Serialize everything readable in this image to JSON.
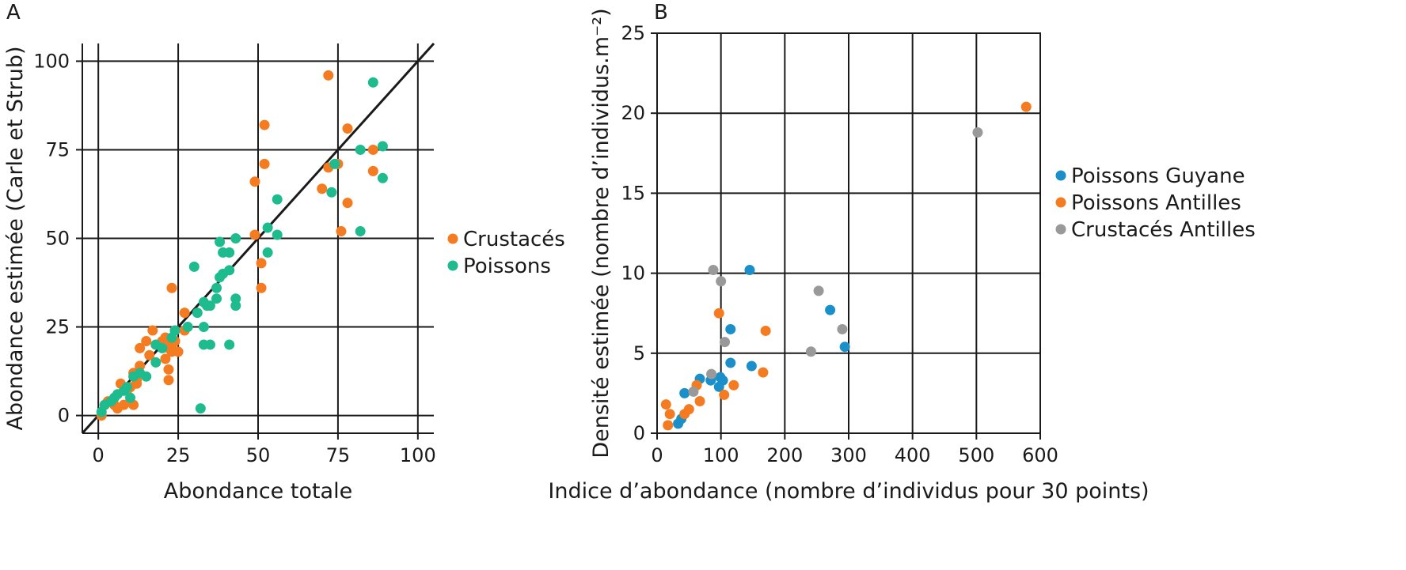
{
  "chart_data": [
    {
      "panel": "A",
      "type": "scatter",
      "xlabel": "Abondance totale",
      "ylabel": "Abondance estimée (Carle et Strub)",
      "xlim": [
        -5,
        105
      ],
      "ylim": [
        -5,
        105
      ],
      "xticks": [
        0,
        25,
        50,
        75,
        100
      ],
      "yticks": [
        0,
        25,
        50,
        75,
        100
      ],
      "grid": true,
      "reference_line": "y = x",
      "legend_position": "right",
      "series": [
        {
          "name": "Crustacés",
          "color": "#f47b20",
          "points": [
            [
              1,
              0
            ],
            [
              2,
              3
            ],
            [
              3,
              4
            ],
            [
              5,
              3
            ],
            [
              6,
              2
            ],
            [
              7,
              9
            ],
            [
              8,
              3
            ],
            [
              9,
              7
            ],
            [
              10,
              8
            ],
            [
              11,
              12
            ],
            [
              11,
              3
            ],
            [
              12,
              10
            ],
            [
              12,
              9
            ],
            [
              13,
              14
            ],
            [
              13,
              19
            ],
            [
              15,
              21
            ],
            [
              16,
              17
            ],
            [
              17,
              24
            ],
            [
              18,
              20
            ],
            [
              20,
              21
            ],
            [
              21,
              16
            ],
            [
              21,
              22
            ],
            [
              22,
              10
            ],
            [
              22,
              13
            ],
            [
              22,
              19
            ],
            [
              23,
              20
            ],
            [
              23,
              36
            ],
            [
              23,
              18
            ],
            [
              24,
              24
            ],
            [
              24,
              21
            ],
            [
              25,
              18
            ],
            [
              27,
              29
            ],
            [
              27,
              24
            ],
            [
              49,
              66
            ],
            [
              49,
              51
            ],
            [
              51,
              43
            ],
            [
              51,
              36
            ],
            [
              52,
              82
            ],
            [
              52,
              71
            ],
            [
              70,
              64
            ],
            [
              72,
              96
            ],
            [
              72,
              70
            ],
            [
              75,
              71
            ],
            [
              76,
              52
            ],
            [
              78,
              81
            ],
            [
              78,
              60
            ],
            [
              86,
              75
            ],
            [
              86,
              69
            ]
          ]
        },
        {
          "name": "Poissons",
          "color": "#1dbb8e",
          "points": [
            [
              1,
              1
            ],
            [
              2,
              3
            ],
            [
              4,
              4
            ],
            [
              5,
              5
            ],
            [
              6,
              6
            ],
            [
              8,
              7
            ],
            [
              9,
              8
            ],
            [
              10,
              5
            ],
            [
              11,
              11
            ],
            [
              13,
              12
            ],
            [
              15,
              11
            ],
            [
              18,
              15
            ],
            [
              18,
              20
            ],
            [
              20,
              19
            ],
            [
              23,
              22
            ],
            [
              24,
              24
            ],
            [
              28,
              25
            ],
            [
              30,
              42
            ],
            [
              31,
              29
            ],
            [
              32,
              2
            ],
            [
              33,
              32
            ],
            [
              33,
              20
            ],
            [
              33,
              25
            ],
            [
              34,
              31
            ],
            [
              35,
              20
            ],
            [
              35,
              31
            ],
            [
              37,
              36
            ],
            [
              37,
              33
            ],
            [
              38,
              39
            ],
            [
              38,
              49
            ],
            [
              39,
              46
            ],
            [
              39,
              40
            ],
            [
              41,
              46
            ],
            [
              41,
              41
            ],
            [
              41,
              20
            ],
            [
              43,
              50
            ],
            [
              43,
              33
            ],
            [
              43,
              31
            ],
            [
              53,
              53
            ],
            [
              53,
              46
            ],
            [
              56,
              61
            ],
            [
              56,
              51
            ],
            [
              73,
              63
            ],
            [
              74,
              71
            ],
            [
              82,
              75
            ],
            [
              82,
              52
            ],
            [
              86,
              94
            ],
            [
              89,
              67
            ],
            [
              89,
              76
            ]
          ]
        }
      ]
    },
    {
      "panel": "B",
      "type": "scatter",
      "xlabel": "Indice d’abondance (nombre d’individus pour 30 points)",
      "ylabel": "Densité estimée (nombre d’individus.m⁻²)",
      "xlim": [
        0,
        600
      ],
      "ylim": [
        0,
        25
      ],
      "xticks": [
        0,
        100,
        200,
        300,
        400,
        500,
        600
      ],
      "yticks": [
        0,
        5,
        10,
        15,
        20,
        25
      ],
      "grid": true,
      "legend_position": "right",
      "series": [
        {
          "name": "Poissons Guyane",
          "color": "#1a8fc9",
          "points": [
            [
              33,
              0.6
            ],
            [
              38,
              0.9
            ],
            [
              43,
              2.5
            ],
            [
              67,
              3.4
            ],
            [
              84,
              3.3
            ],
            [
              97,
              2.9
            ],
            [
              99,
              3.5
            ],
            [
              103,
              3.3
            ],
            [
              115,
              4.4
            ],
            [
              115,
              6.5
            ],
            [
              145,
              10.2
            ],
            [
              148,
              4.2
            ],
            [
              271,
              7.7
            ],
            [
              294,
              5.4
            ]
          ]
        },
        {
          "name": "Poissons Antilles",
          "color": "#f47b20",
          "points": [
            [
              14,
              1.8
            ],
            [
              17,
              0.5
            ],
            [
              20,
              1.2
            ],
            [
              43,
              1.2
            ],
            [
              50,
              1.5
            ],
            [
              62,
              3.0
            ],
            [
              67,
              2.0
            ],
            [
              97,
              7.5
            ],
            [
              105,
              2.4
            ],
            [
              120,
              3.0
            ],
            [
              166,
              3.8
            ],
            [
              170,
              6.4
            ],
            [
              578,
              20.4
            ]
          ]
        },
        {
          "name": "Crustacés Antilles",
          "color": "#999999",
          "points": [
            [
              57,
              2.6
            ],
            [
              85,
              3.7
            ],
            [
              88,
              10.2
            ],
            [
              100,
              9.5
            ],
            [
              106,
              5.7
            ],
            [
              241,
              5.1
            ],
            [
              253,
              8.9
            ],
            [
              290,
              6.5
            ],
            [
              502,
              18.8
            ]
          ]
        }
      ]
    }
  ]
}
